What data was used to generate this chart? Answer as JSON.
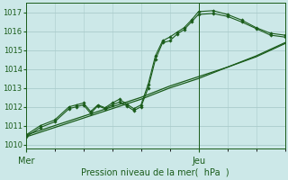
{
  "bg_color": "#cce8e8",
  "grid_color": "#aacccc",
  "line_color": "#1a5c1a",
  "marker_color": "#1a5c1a",
  "ylim": [
    1009.8,
    1017.5
  ],
  "xlim": [
    0,
    72
  ],
  "yticks": [
    1010,
    1011,
    1012,
    1013,
    1014,
    1015,
    1016,
    1017
  ],
  "xtick_positions": [
    0,
    48
  ],
  "xtick_labels": [
    "Mer",
    "Jeu"
  ],
  "xlabel": "Pression niveau de la mer(  hPa  )",
  "vline_x": 48,
  "series_smooth": {
    "x": [
      0,
      8,
      16,
      24,
      32,
      40,
      48,
      56,
      64,
      72
    ],
    "y1": [
      1010.5,
      1011.0,
      1011.5,
      1012.0,
      1012.5,
      1013.1,
      1013.6,
      1014.1,
      1014.7,
      1015.4
    ],
    "y2": [
      1010.4,
      1010.9,
      1011.4,
      1011.9,
      1012.4,
      1013.0,
      1013.5,
      1014.1,
      1014.65,
      1015.35
    ]
  },
  "series_zigzag": {
    "x": [
      0,
      4,
      8,
      12,
      14,
      16,
      18,
      20,
      22,
      24,
      26,
      28,
      30,
      32,
      34,
      36,
      38,
      40,
      42,
      44,
      46,
      48,
      52,
      56,
      60,
      64,
      68,
      72
    ],
    "y": [
      1010.4,
      1010.9,
      1011.2,
      1011.9,
      1012.0,
      1012.1,
      1011.65,
      1012.05,
      1011.9,
      1012.1,
      1012.25,
      1012.05,
      1011.8,
      1012.0,
      1013.0,
      1014.5,
      1015.4,
      1015.5,
      1015.85,
      1016.1,
      1016.5,
      1016.9,
      1016.95,
      1016.8,
      1016.5,
      1016.15,
      1015.8,
      1015.7
    ]
  },
  "series_upper": {
    "x": [
      0,
      4,
      8,
      12,
      14,
      16,
      18,
      20,
      22,
      24,
      26,
      28,
      30,
      32,
      34,
      36,
      38,
      40,
      42,
      44,
      46,
      48,
      52,
      56,
      60,
      64,
      68,
      72
    ],
    "y": [
      1010.5,
      1011.0,
      1011.3,
      1012.0,
      1012.1,
      1012.2,
      1011.75,
      1012.1,
      1011.95,
      1012.2,
      1012.4,
      1012.15,
      1011.9,
      1012.1,
      1013.2,
      1014.7,
      1015.5,
      1015.7,
      1015.95,
      1016.2,
      1016.6,
      1017.05,
      1017.1,
      1016.9,
      1016.6,
      1016.2,
      1015.9,
      1015.8
    ]
  }
}
